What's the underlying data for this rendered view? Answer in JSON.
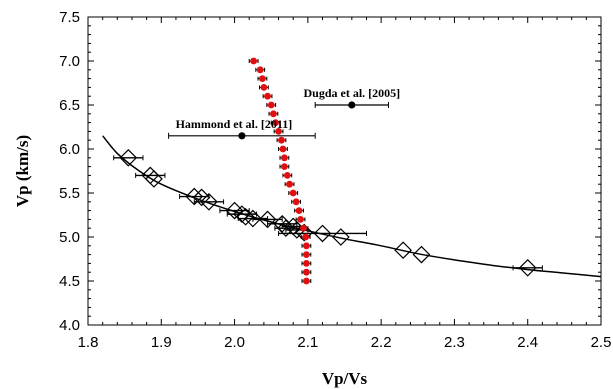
{
  "chart_data": {
    "type": "scatter",
    "xlabel": "Vp/Vs",
    "ylabel": "Vp (km/s)",
    "xlim": [
      1.8,
      2.5
    ],
    "ylim": [
      4.0,
      7.5
    ],
    "xticks": [
      "1.8",
      "1.9",
      "2.0",
      "2.1",
      "2.2",
      "2.3",
      "2.4",
      "2.5"
    ],
    "yticks": [
      "4.0",
      "4.5",
      "5.0",
      "5.5",
      "6.0",
      "6.5",
      "7.0",
      "7.5"
    ],
    "grid": false,
    "diamonds": [
      {
        "x": 1.855,
        "y": 5.9,
        "xerr": 0.02
      },
      {
        "x": 1.885,
        "y": 5.7,
        "xerr": 0.02
      },
      {
        "x": 1.89,
        "y": 5.66,
        "xerr": 0.0
      },
      {
        "x": 1.945,
        "y": 5.46,
        "xerr": 0.02
      },
      {
        "x": 1.955,
        "y": 5.45,
        "xerr": 0.0
      },
      {
        "x": 1.965,
        "y": 5.4,
        "xerr": 0.02
      },
      {
        "x": 2.0,
        "y": 5.3,
        "xerr": 0.02
      },
      {
        "x": 2.01,
        "y": 5.26,
        "xerr": 0.02
      },
      {
        "x": 2.015,
        "y": 5.23,
        "xerr": 0.0
      },
      {
        "x": 2.025,
        "y": 5.21,
        "xerr": 0.02
      },
      {
        "x": 2.045,
        "y": 5.2,
        "xerr": 0.02
      },
      {
        "x": 2.065,
        "y": 5.15,
        "xerr": 0.02
      },
      {
        "x": 2.07,
        "y": 5.1,
        "xerr": 0.015
      },
      {
        "x": 2.08,
        "y": 5.12,
        "xerr": 0.015
      },
      {
        "x": 2.085,
        "y": 5.08,
        "xerr": 0.015
      },
      {
        "x": 2.095,
        "y": 5.05,
        "xerr": 0.0
      },
      {
        "x": 2.12,
        "y": 5.04,
        "xerr": 0.06
      },
      {
        "x": 2.145,
        "y": 5.0,
        "xerr": 0.0
      },
      {
        "x": 2.23,
        "y": 4.85,
        "xerr": 0.0
      },
      {
        "x": 2.255,
        "y": 4.8,
        "xerr": 0.0
      },
      {
        "x": 2.4,
        "y": 4.65,
        "xerr": 0.02
      }
    ],
    "red_points": [
      {
        "x": 2.026,
        "y": 7.0
      },
      {
        "x": 2.035,
        "y": 6.9
      },
      {
        "x": 2.038,
        "y": 6.8
      },
      {
        "x": 2.04,
        "y": 6.7
      },
      {
        "x": 2.045,
        "y": 6.6
      },
      {
        "x": 2.05,
        "y": 6.5
      },
      {
        "x": 2.053,
        "y": 6.4
      },
      {
        "x": 2.056,
        "y": 6.3
      },
      {
        "x": 2.06,
        "y": 6.2
      },
      {
        "x": 2.064,
        "y": 6.1
      },
      {
        "x": 2.066,
        "y": 6.0
      },
      {
        "x": 2.068,
        "y": 5.9
      },
      {
        "x": 2.068,
        "y": 5.8
      },
      {
        "x": 2.072,
        "y": 5.7
      },
      {
        "x": 2.075,
        "y": 5.6
      },
      {
        "x": 2.08,
        "y": 5.5
      },
      {
        "x": 2.084,
        "y": 5.4
      },
      {
        "x": 2.088,
        "y": 5.3
      },
      {
        "x": 2.09,
        "y": 5.2
      },
      {
        "x": 2.094,
        "y": 5.1
      },
      {
        "x": 2.097,
        "y": 5.0
      },
      {
        "x": 2.098,
        "y": 4.9
      },
      {
        "x": 2.098,
        "y": 4.8
      },
      {
        "x": 2.098,
        "y": 4.7
      },
      {
        "x": 2.098,
        "y": 4.6
      },
      {
        "x": 2.098,
        "y": 4.5
      }
    ],
    "red_xerr": 0.006,
    "curve": [
      {
        "x": 1.82,
        "y": 6.15
      },
      {
        "x": 1.84,
        "y": 5.95
      },
      {
        "x": 1.87,
        "y": 5.75
      },
      {
        "x": 1.9,
        "y": 5.6
      },
      {
        "x": 1.95,
        "y": 5.43
      },
      {
        "x": 2.0,
        "y": 5.29
      },
      {
        "x": 2.05,
        "y": 5.17
      },
      {
        "x": 2.1,
        "y": 5.07
      },
      {
        "x": 2.15,
        "y": 4.98
      },
      {
        "x": 2.2,
        "y": 4.9
      },
      {
        "x": 2.25,
        "y": 4.81
      },
      {
        "x": 2.3,
        "y": 4.74
      },
      {
        "x": 2.35,
        "y": 4.68
      },
      {
        "x": 2.4,
        "y": 4.63
      },
      {
        "x": 2.45,
        "y": 4.59
      },
      {
        "x": 2.5,
        "y": 4.55
      }
    ],
    "studies": [
      {
        "label": "Hammond et al. [2011]",
        "x": 2.01,
        "y": 6.15,
        "xmin": 1.91,
        "xmax": 2.11
      },
      {
        "label": "Dugda et al. [2005]",
        "x": 2.16,
        "y": 6.5,
        "xmin": 2.11,
        "xmax": 2.21
      }
    ],
    "colors": {
      "red": "#e01010",
      "black": "#000000"
    }
  }
}
